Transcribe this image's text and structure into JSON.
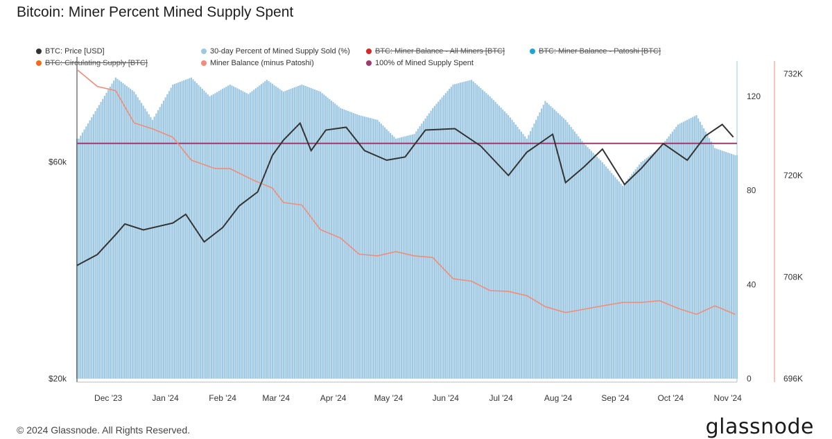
{
  "title": "Bitcoin: Miner Percent Mined Supply Spent",
  "footer": "© 2024 Glassnode. All Rights Reserved.",
  "brand": "glassnode",
  "legend": [
    {
      "label": "BTC: Price [USD]",
      "color": "#333333",
      "active": true
    },
    {
      "label": "30-day Percent of Mined Supply Sold (%)",
      "color": "#9ec8e2",
      "active": true
    },
    {
      "label": "BTC: Miner Balance - All Miners [BTC]",
      "color": "#d62728",
      "active": false
    },
    {
      "label": "BTC: Miner Balance - Patoshi [BTC]",
      "color": "#1fa3d4",
      "active": false
    },
    {
      "label": "BTC: Circulating Supply [BTC]",
      "color": "#f26b1d",
      "active": false
    },
    {
      "label": "Miner Balance (minus Patoshi)",
      "color": "#f08c78",
      "active": true
    },
    {
      "label": "100% of Mined Supply Spent",
      "color": "#a03a6c",
      "active": true
    }
  ],
  "chart_data": {
    "type": "bar",
    "x_tick_labels": [
      "Dec '23",
      "Jan '24",
      "Feb '24",
      "Mar '24",
      "Apr '24",
      "May '24",
      "Jun '24",
      "Jul '24",
      "Aug '24",
      "Sep '24",
      "Oct '24",
      "Nov '24"
    ],
    "x_range": [
      "2023-11-14",
      "2024-11-06"
    ],
    "y_left": {
      "scale": "log",
      "ticks": [
        "$20k",
        "$60k"
      ],
      "tick_values": [
        20000,
        60000
      ],
      "range": [
        20000,
        100000
      ]
    },
    "y_right_percent": {
      "ticks": [
        "0",
        "40",
        "80",
        "120"
      ],
      "range": [
        0,
        135
      ]
    },
    "y_right_balance": {
      "ticks": [
        "696K",
        "708K",
        "720K",
        "732K"
      ],
      "range": [
        696000,
        733500
      ]
    },
    "reference_line_percent": 100,
    "percent_sold": [
      {
        "x": "2023-11-15",
        "y": 102
      },
      {
        "x": "2023-11-25",
        "y": 115
      },
      {
        "x": "2023-12-05",
        "y": 128
      },
      {
        "x": "2023-12-15",
        "y": 122
      },
      {
        "x": "2023-12-25",
        "y": 110
      },
      {
        "x": "2024-01-05",
        "y": 125
      },
      {
        "x": "2024-01-15",
        "y": 128
      },
      {
        "x": "2024-01-25",
        "y": 120
      },
      {
        "x": "2024-02-05",
        "y": 125
      },
      {
        "x": "2024-02-15",
        "y": 121
      },
      {
        "x": "2024-02-25",
        "y": 127
      },
      {
        "x": "2024-03-05",
        "y": 122
      },
      {
        "x": "2024-03-15",
        "y": 125
      },
      {
        "x": "2024-03-25",
        "y": 122
      },
      {
        "x": "2024-04-05",
        "y": 115
      },
      {
        "x": "2024-04-15",
        "y": 112
      },
      {
        "x": "2024-04-25",
        "y": 110
      },
      {
        "x": "2024-05-05",
        "y": 102
      },
      {
        "x": "2024-05-15",
        "y": 104
      },
      {
        "x": "2024-05-25",
        "y": 115
      },
      {
        "x": "2024-06-05",
        "y": 125
      },
      {
        "x": "2024-06-15",
        "y": 127
      },
      {
        "x": "2024-06-25",
        "y": 120
      },
      {
        "x": "2024-07-05",
        "y": 112
      },
      {
        "x": "2024-07-15",
        "y": 102
      },
      {
        "x": "2024-07-25",
        "y": 118
      },
      {
        "x": "2024-08-05",
        "y": 110
      },
      {
        "x": "2024-08-15",
        "y": 100
      },
      {
        "x": "2024-08-25",
        "y": 92
      },
      {
        "x": "2024-09-05",
        "y": 82
      },
      {
        "x": "2024-09-15",
        "y": 92
      },
      {
        "x": "2024-09-25",
        "y": 98
      },
      {
        "x": "2024-10-05",
        "y": 108
      },
      {
        "x": "2024-10-15",
        "y": 112
      },
      {
        "x": "2024-10-25",
        "y": 98
      },
      {
        "x": "2024-11-05",
        "y": 95
      }
    ],
    "price_usd": [
      {
        "x": "2023-11-14",
        "y": 35500
      },
      {
        "x": "2023-11-25",
        "y": 37500
      },
      {
        "x": "2023-12-05",
        "y": 41500
      },
      {
        "x": "2023-12-10",
        "y": 43800
      },
      {
        "x": "2023-12-20",
        "y": 42500
      },
      {
        "x": "2024-01-05",
        "y": 44000
      },
      {
        "x": "2024-01-12",
        "y": 46000
      },
      {
        "x": "2024-01-22",
        "y": 40000
      },
      {
        "x": "2024-02-01",
        "y": 43000
      },
      {
        "x": "2024-02-10",
        "y": 48000
      },
      {
        "x": "2024-02-20",
        "y": 51500
      },
      {
        "x": "2024-02-28",
        "y": 62000
      },
      {
        "x": "2024-03-05",
        "y": 67000
      },
      {
        "x": "2024-03-14",
        "y": 73000
      },
      {
        "x": "2024-03-20",
        "y": 63500
      },
      {
        "x": "2024-03-28",
        "y": 70500
      },
      {
        "x": "2024-04-08",
        "y": 71500
      },
      {
        "x": "2024-04-18",
        "y": 63500
      },
      {
        "x": "2024-04-30",
        "y": 60500
      },
      {
        "x": "2024-05-10",
        "y": 61500
      },
      {
        "x": "2024-05-21",
        "y": 70500
      },
      {
        "x": "2024-06-06",
        "y": 71000
      },
      {
        "x": "2024-06-20",
        "y": 65000
      },
      {
        "x": "2024-07-05",
        "y": 56000
      },
      {
        "x": "2024-07-15",
        "y": 63000
      },
      {
        "x": "2024-07-29",
        "y": 69000
      },
      {
        "x": "2024-08-05",
        "y": 54000
      },
      {
        "x": "2024-08-15",
        "y": 58500
      },
      {
        "x": "2024-08-25",
        "y": 64000
      },
      {
        "x": "2024-09-06",
        "y": 53500
      },
      {
        "x": "2024-09-15",
        "y": 58000
      },
      {
        "x": "2024-09-27",
        "y": 65800
      },
      {
        "x": "2024-10-10",
        "y": 60500
      },
      {
        "x": "2024-10-20",
        "y": 68500
      },
      {
        "x": "2024-10-29",
        "y": 72500
      },
      {
        "x": "2024-11-04",
        "y": 68000
      }
    ],
    "miner_balance_minus_patoshi": [
      {
        "x": "2023-11-14",
        "y": 732500
      },
      {
        "x": "2023-11-25",
        "y": 730500
      },
      {
        "x": "2023-12-05",
        "y": 730000
      },
      {
        "x": "2023-12-15",
        "y": 726200
      },
      {
        "x": "2023-12-25",
        "y": 725500
      },
      {
        "x": "2024-01-05",
        "y": 724500
      },
      {
        "x": "2024-01-15",
        "y": 721800
      },
      {
        "x": "2024-01-28",
        "y": 720800
      },
      {
        "x": "2024-02-05",
        "y": 720800
      },
      {
        "x": "2024-02-18",
        "y": 719400
      },
      {
        "x": "2024-02-28",
        "y": 718500
      },
      {
        "x": "2024-03-05",
        "y": 716800
      },
      {
        "x": "2024-03-15",
        "y": 716500
      },
      {
        "x": "2024-03-25",
        "y": 713600
      },
      {
        "x": "2024-04-05",
        "y": 712600
      },
      {
        "x": "2024-04-15",
        "y": 710700
      },
      {
        "x": "2024-04-25",
        "y": 710500
      },
      {
        "x": "2024-05-05",
        "y": 711000
      },
      {
        "x": "2024-05-15",
        "y": 710500
      },
      {
        "x": "2024-05-25",
        "y": 710300
      },
      {
        "x": "2024-06-05",
        "y": 707800
      },
      {
        "x": "2024-06-15",
        "y": 707500
      },
      {
        "x": "2024-06-25",
        "y": 706400
      },
      {
        "x": "2024-07-05",
        "y": 706300
      },
      {
        "x": "2024-07-15",
        "y": 705800
      },
      {
        "x": "2024-07-25",
        "y": 704500
      },
      {
        "x": "2024-08-05",
        "y": 703800
      },
      {
        "x": "2024-08-15",
        "y": 704200
      },
      {
        "x": "2024-08-25",
        "y": 704600
      },
      {
        "x": "2024-09-05",
        "y": 705000
      },
      {
        "x": "2024-09-15",
        "y": 705000
      },
      {
        "x": "2024-09-25",
        "y": 705200
      },
      {
        "x": "2024-10-05",
        "y": 704300
      },
      {
        "x": "2024-10-15",
        "y": 703600
      },
      {
        "x": "2024-10-25",
        "y": 704600
      },
      {
        "x": "2024-11-05",
        "y": 703600
      }
    ]
  }
}
